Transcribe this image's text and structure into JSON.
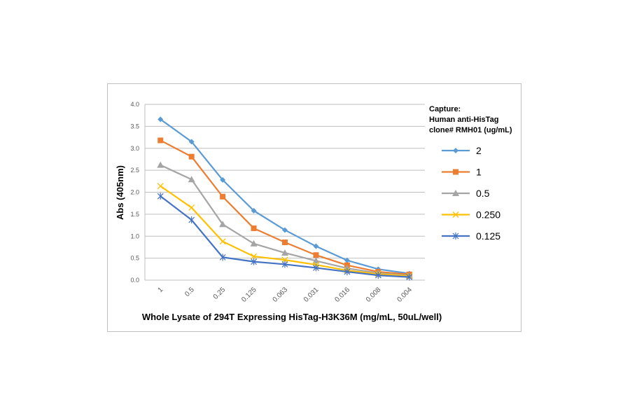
{
  "chart_data": {
    "type": "line",
    "xlabel": "Whole Lysate of 294T Expressing HisTag-H3K36M (mg/mL, 50uL/well)",
    "ylabel": "Abs (405nm)",
    "ylim": [
      0,
      4
    ],
    "yticks": [
      "0.0",
      "0.5",
      "1.0",
      "1.5",
      "2.0",
      "2.5",
      "3.0",
      "3.5",
      "4.0"
    ],
    "categories": [
      "1",
      "0.5",
      "0.25",
      "0.125",
      "0.063",
      "0.031",
      "0.016",
      "0.008",
      "0.004"
    ],
    "grid": true,
    "legend_position": "right",
    "legend_title": [
      "Capture:",
      "Human anti-HisTag",
      "clone# RMH01 (ug/mL)"
    ],
    "series": [
      {
        "name": "2",
        "color": "#5b9bd5",
        "marker": "diamond",
        "values": [
          3.66,
          3.15,
          2.28,
          1.58,
          1.14,
          0.77,
          0.45,
          0.25,
          0.15
        ]
      },
      {
        "name": "1",
        "color": "#ed7d31",
        "marker": "square",
        "values": [
          3.18,
          2.81,
          1.9,
          1.18,
          0.86,
          0.57,
          0.34,
          0.19,
          0.13
        ]
      },
      {
        "name": "0.5",
        "color": "#a5a5a5",
        "marker": "triangle",
        "values": [
          2.62,
          2.29,
          1.27,
          0.83,
          0.62,
          0.44,
          0.27,
          0.16,
          0.1
        ]
      },
      {
        "name": "0.250",
        "color": "#ffc000",
        "marker": "x",
        "values": [
          2.14,
          1.65,
          0.88,
          0.54,
          0.46,
          0.35,
          0.22,
          0.14,
          0.09
        ]
      },
      {
        "name": "0.125",
        "color": "#4472c4",
        "marker": "star",
        "values": [
          1.91,
          1.37,
          0.52,
          0.42,
          0.36,
          0.28,
          0.19,
          0.11,
          0.07
        ]
      }
    ]
  }
}
